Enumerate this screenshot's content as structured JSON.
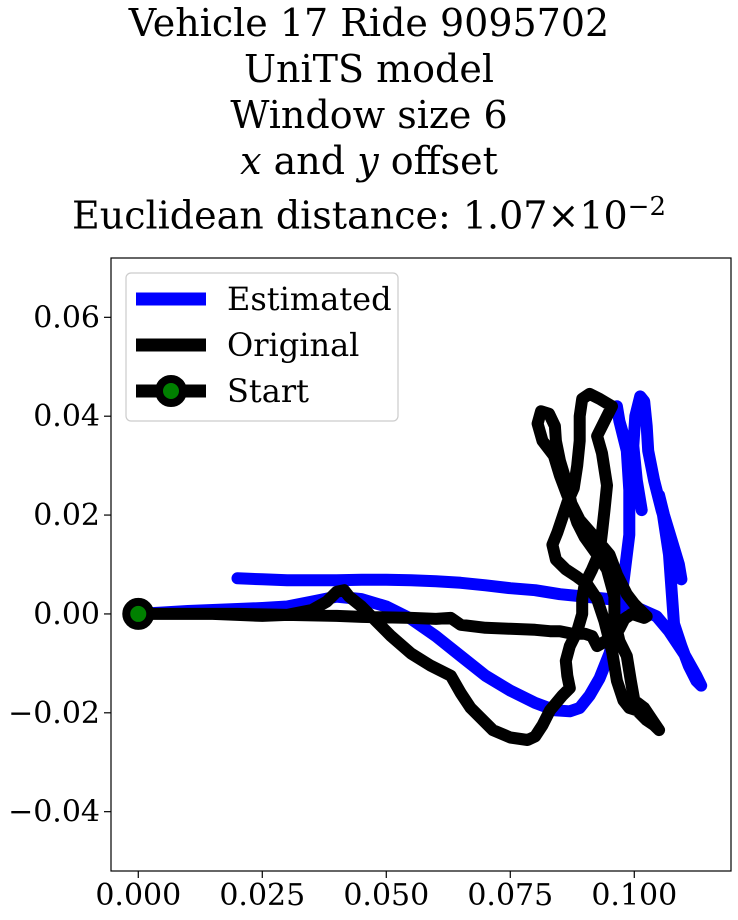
{
  "chart_data": {
    "type": "line",
    "title_lines": [
      "Vehicle 17 Ride 9095702",
      "UniTS model",
      "Window size 6"
    ],
    "title_line4": {
      "x_var": "x",
      "and": " and ",
      "y_var": "y",
      "rest": " offset"
    },
    "title_line5": {
      "prefix": "Euclidean distance: ",
      "mantissa": "1.07",
      "times": "×",
      "base": "10",
      "exponent": "−2"
    },
    "xlim": [
      -0.0055,
      0.1195
    ],
    "ylim": [
      -0.052,
      0.072
    ],
    "xticks": [
      0.0,
      0.025,
      0.05,
      0.075,
      0.1
    ],
    "xtick_labels": [
      "0.000",
      "0.025",
      "0.050",
      "0.075",
      "0.100"
    ],
    "yticks": [
      -0.04,
      -0.02,
      0.0,
      0.02,
      0.04,
      0.06
    ],
    "ytick_labels": [
      "−0.04",
      "−0.02",
      "0.00",
      "0.02",
      "0.04",
      "0.06"
    ],
    "grid": false,
    "legend_position": "upper-left",
    "series": [
      {
        "name": "Estimated",
        "color": "#0000ff",
        "points": [
          [
            0.0,
            0.0
          ],
          [
            0.005,
            0.0003
          ],
          [
            0.01,
            0.0006
          ],
          [
            0.015,
            0.0008
          ],
          [
            0.02,
            0.001
          ],
          [
            0.025,
            0.0012
          ],
          [
            0.03,
            0.0015
          ],
          [
            0.035,
            0.0025
          ],
          [
            0.04,
            0.0035
          ],
          [
            0.045,
            0.003
          ],
          [
            0.05,
            0.0015
          ],
          [
            0.055,
            -0.001
          ],
          [
            0.06,
            -0.0045
          ],
          [
            0.065,
            -0.0085
          ],
          [
            0.07,
            -0.0125
          ],
          [
            0.075,
            -0.0155
          ],
          [
            0.08,
            -0.018
          ],
          [
            0.084,
            -0.0195
          ],
          [
            0.087,
            -0.0197
          ],
          [
            0.089,
            -0.019
          ],
          [
            0.091,
            -0.0165
          ],
          [
            0.093,
            -0.013
          ],
          [
            0.095,
            -0.008
          ],
          [
            0.097,
            0.0
          ],
          [
            0.098,
            0.008
          ],
          [
            0.099,
            0.016
          ],
          [
            0.099,
            0.025
          ],
          [
            0.0985,
            0.033
          ],
          [
            0.097,
            0.039
          ],
          [
            0.0965,
            0.042
          ],
          [
            0.097,
            0.039
          ],
          [
            0.099,
            0.032
          ],
          [
            0.1005,
            0.026
          ],
          [
            0.1015,
            0.021
          ],
          [
            0.1005,
            0.027
          ],
          [
            0.0998,
            0.034
          ],
          [
            0.1002,
            0.04
          ],
          [
            0.1012,
            0.044
          ],
          [
            0.102,
            0.043
          ],
          [
            0.1025,
            0.038
          ],
          [
            0.1028,
            0.033
          ],
          [
            0.104,
            0.027
          ],
          [
            0.1055,
            0.021
          ],
          [
            0.107,
            0.016
          ],
          [
            0.108,
            0.012
          ],
          [
            0.109,
            0.0085
          ],
          [
            0.1095,
            0.007
          ],
          [
            0.109,
            0.01
          ],
          [
            0.1075,
            0.015
          ],
          [
            0.106,
            0.02
          ],
          [
            0.105,
            0.024
          ],
          [
            0.1058,
            0.02
          ],
          [
            0.107,
            0.012
          ],
          [
            0.1075,
            0.005
          ],
          [
            0.108,
            -0.002
          ],
          [
            0.1095,
            -0.0065
          ],
          [
            0.111,
            -0.0105
          ],
          [
            0.1125,
            -0.0135
          ],
          [
            0.1135,
            -0.0145
          ],
          [
            0.1125,
            -0.0125
          ],
          [
            0.11,
            -0.008
          ],
          [
            0.107,
            -0.0035
          ],
          [
            0.1045,
            -0.0005
          ],
          [
            0.1,
            0.0015
          ],
          [
            0.095,
            0.003
          ],
          [
            0.09,
            0.0035
          ],
          [
            0.085,
            0.004
          ],
          [
            0.08,
            0.0048
          ],
          [
            0.075,
            0.0052
          ],
          [
            0.07,
            0.0058
          ],
          [
            0.065,
            0.0063
          ],
          [
            0.06,
            0.0066
          ],
          [
            0.055,
            0.0068
          ],
          [
            0.05,
            0.0069
          ],
          [
            0.045,
            0.0069
          ],
          [
            0.04,
            0.0068
          ],
          [
            0.035,
            0.0068
          ],
          [
            0.03,
            0.0068
          ],
          [
            0.025,
            0.007
          ],
          [
            0.02,
            0.0072
          ]
        ]
      },
      {
        "name": "Original",
        "color": "#000000",
        "points": [
          [
            0.0,
            0.0
          ],
          [
            0.005,
            0.0
          ],
          [
            0.01,
            0.0
          ],
          [
            0.015,
            0.0
          ],
          [
            0.02,
            -0.0002
          ],
          [
            0.025,
            -0.0004
          ],
          [
            0.03,
            -0.0002
          ],
          [
            0.035,
            0.0008
          ],
          [
            0.038,
            0.0025
          ],
          [
            0.04,
            0.0045
          ],
          [
            0.0415,
            0.0048
          ],
          [
            0.0425,
            0.0035
          ],
          [
            0.045,
            0.0015
          ],
          [
            0.048,
            -0.0015
          ],
          [
            0.051,
            -0.0045
          ],
          [
            0.055,
            -0.008
          ],
          [
            0.059,
            -0.0105
          ],
          [
            0.063,
            -0.0125
          ],
          [
            0.065,
            -0.016
          ],
          [
            0.067,
            -0.019
          ],
          [
            0.0695,
            -0.0215
          ],
          [
            0.0715,
            -0.0235
          ],
          [
            0.075,
            -0.025
          ],
          [
            0.0785,
            -0.0255
          ],
          [
            0.08,
            -0.0248
          ],
          [
            0.0815,
            -0.0225
          ],
          [
            0.083,
            -0.0195
          ],
          [
            0.0855,
            -0.0165
          ],
          [
            0.087,
            -0.015
          ],
          [
            0.0865,
            -0.0125
          ],
          [
            0.0862,
            -0.0095
          ],
          [
            0.087,
            -0.0065
          ],
          [
            0.0885,
            -0.0035
          ],
          [
            0.0895,
            0.0
          ],
          [
            0.0895,
            0.003
          ],
          [
            0.09,
            0.006
          ],
          [
            0.0915,
            0.009
          ],
          [
            0.093,
            0.0125
          ],
          [
            0.0935,
            0.0165
          ],
          [
            0.094,
            0.021
          ],
          [
            0.0945,
            0.026
          ],
          [
            0.0935,
            0.0325
          ],
          [
            0.0925,
            0.036
          ],
          [
            0.0945,
            0.04
          ],
          [
            0.0955,
            0.042
          ],
          [
            0.093,
            0.0435
          ],
          [
            0.091,
            0.0445
          ],
          [
            0.0895,
            0.0435
          ],
          [
            0.089,
            0.04
          ],
          [
            0.089,
            0.035
          ],
          [
            0.0885,
            0.03
          ],
          [
            0.0878,
            0.0255
          ],
          [
            0.0865,
            0.0225
          ],
          [
            0.0855,
            0.0195
          ],
          [
            0.0845,
            0.0165
          ],
          [
            0.0835,
            0.014
          ],
          [
            0.0842,
            0.011
          ],
          [
            0.0862,
            0.009
          ],
          [
            0.0885,
            0.0075
          ],
          [
            0.0905,
            0.006
          ],
          [
            0.0925,
            0.003
          ],
          [
            0.094,
            -0.0015
          ],
          [
            0.0955,
            -0.0075
          ],
          [
            0.0965,
            -0.0135
          ],
          [
            0.0978,
            -0.0175
          ],
          [
            0.099,
            -0.019
          ],
          [
            0.1005,
            -0.0195
          ],
          [
            0.1025,
            -0.0215
          ],
          [
            0.104,
            -0.0225
          ],
          [
            0.105,
            -0.0235
          ],
          [
            0.104,
            -0.022
          ],
          [
            0.102,
            -0.019
          ],
          [
            0.1,
            -0.0175
          ],
          [
            0.0993,
            -0.0135
          ],
          [
            0.0985,
            -0.0085
          ],
          [
            0.097,
            -0.0055
          ],
          [
            0.096,
            -0.001
          ],
          [
            0.096,
            0.0035
          ],
          [
            0.0945,
            0.009
          ],
          [
            0.0925,
            0.012
          ],
          [
            0.09,
            0.0155
          ],
          [
            0.0885,
            0.0185
          ],
          [
            0.0875,
            0.0215
          ],
          [
            0.0865,
            0.026
          ],
          [
            0.085,
            0.031
          ],
          [
            0.0842,
            0.035
          ],
          [
            0.084,
            0.038
          ],
          [
            0.0828,
            0.0405
          ],
          [
            0.0812,
            0.041
          ],
          [
            0.0805,
            0.0385
          ],
          [
            0.0815,
            0.035
          ],
          [
            0.0838,
            0.032
          ],
          [
            0.085,
            0.028
          ],
          [
            0.0865,
            0.024
          ],
          [
            0.089,
            0.019
          ],
          [
            0.0925,
            0.015
          ],
          [
            0.095,
            0.012
          ],
          [
            0.0965,
            0.008
          ],
          [
            0.0985,
            0.004
          ],
          [
            0.1,
            0.002
          ],
          [
            0.1015,
            0.0005
          ],
          [
            0.1025,
            -0.0005
          ],
          [
            0.102,
            -0.0008
          ],
          [
            0.0995,
            0.0
          ],
          [
            0.098,
            -0.001
          ],
          [
            0.097,
            -0.003
          ],
          [
            0.095,
            -0.005
          ],
          [
            0.0925,
            -0.0065
          ],
          [
            0.0915,
            -0.0045
          ],
          [
            0.09,
            -0.004
          ],
          [
            0.0875,
            -0.004
          ],
          [
            0.085,
            -0.0035
          ],
          [
            0.083,
            -0.0035
          ],
          [
            0.08,
            -0.0032
          ],
          [
            0.075,
            -0.003
          ],
          [
            0.07,
            -0.0028
          ],
          [
            0.065,
            -0.0022
          ],
          [
            0.063,
            -0.0008
          ],
          [
            0.06,
            -0.001
          ],
          [
            0.055,
            -0.0008
          ],
          [
            0.05,
            -0.0007
          ],
          [
            0.045,
            -0.0006
          ],
          [
            0.04,
            -0.0004
          ],
          [
            0.035,
            -0.0003
          ],
          [
            0.03,
            -0.0002
          ],
          [
            0.025,
            -0.0001
          ],
          [
            0.02,
            0.0
          ],
          [
            0.015,
            0.0
          ],
          [
            0.01,
            0.0
          ],
          [
            0.005,
            0.0
          ]
        ]
      }
    ],
    "legend": [
      {
        "label": "Estimated",
        "color": "#0000ff",
        "marker": "none"
      },
      {
        "label": "Original",
        "color": "#000000",
        "marker": "none"
      },
      {
        "label": "Start",
        "color": "#000000",
        "marker": "circle",
        "marker_face": "#008000"
      }
    ],
    "start_point": {
      "x": 0.0,
      "y": 0.0,
      "edge_color": "#000000",
      "face_color": "#008000"
    }
  }
}
